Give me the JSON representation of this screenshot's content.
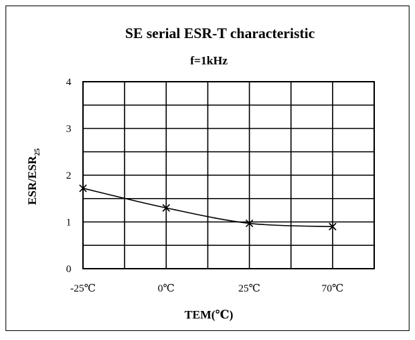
{
  "chart_data": {
    "type": "line",
    "title": "SE serial ESR-T characteristic",
    "subtitle": "f=1kHz",
    "xlabel": "TEM(℃)",
    "ylabel_main": "ESR/ESR",
    "ylabel_sub": "25",
    "categories": [
      "-25℃",
      "0℃",
      "25℃",
      "70℃"
    ],
    "series": [
      {
        "values": [
          1.72,
          1.3,
          0.97,
          0.9
        ]
      }
    ],
    "ylim": [
      0,
      4
    ],
    "yticks": [
      "0",
      "1",
      "2",
      "3",
      "4"
    ],
    "grid": true,
    "marker": "x"
  }
}
